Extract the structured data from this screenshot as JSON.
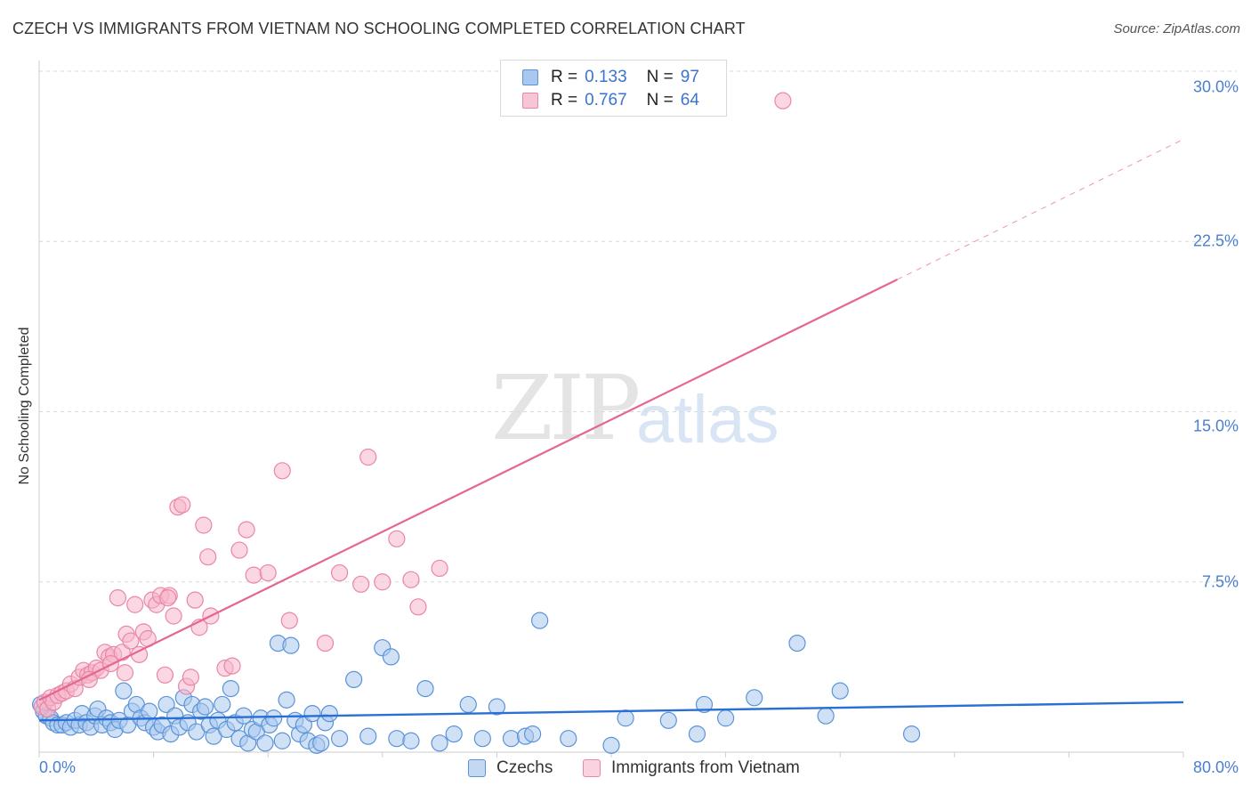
{
  "title": "CZECH VS IMMIGRANTS FROM VIETNAM NO SCHOOLING COMPLETED CORRELATION CHART",
  "source": "Source: ZipAtlas.com",
  "watermark": {
    "part_a": "ZIP",
    "part_b": "atlas"
  },
  "legend": {
    "rows": [
      {
        "r_label": "R =",
        "r_value": "0.133",
        "n_label": "N =",
        "n_value": "97"
      },
      {
        "r_label": "R =",
        "r_value": "0.767",
        "n_label": "N =",
        "n_value": "64"
      }
    ]
  },
  "bottom_legend": [
    "Czechs",
    "Immigrants from Vietnam"
  ],
  "colors": {
    "blue_fill": "#a9c8ef",
    "blue_stroke": "#5b93d8",
    "blue_line": "#2a6fd6",
    "pink_fill": "#f6b7cb",
    "pink_stroke": "#ea86a6",
    "pink_line": "#e56690",
    "grid": "#d9d9d9",
    "tick_text": "#4a7fd0"
  },
  "chart_data": {
    "type": "scatter",
    "title": "CZECH VS IMMIGRANTS FROM VIETNAM NO SCHOOLING COMPLETED CORRELATION CHART",
    "xlabel": "",
    "ylabel": "No Schooling Completed",
    "xlim": [
      0,
      80
    ],
    "ylim": [
      0,
      30
    ],
    "x_tick_labels": [
      "0.0%",
      "80.0%"
    ],
    "y_ticks": [
      7.5,
      15.0,
      22.5,
      30.0
    ],
    "y_tick_labels": [
      "7.5%",
      "15.0%",
      "22.5%",
      "30.0%"
    ],
    "grid": true,
    "legend_position": "top-center",
    "series": [
      {
        "name": "Czechs",
        "r": 0.133,
        "n": 97,
        "trend": {
          "x0": 0,
          "y0": 1.4,
          "x1": 80,
          "y1": 2.2,
          "dashed_from": null
        },
        "points": [
          [
            0.1,
            2.1
          ],
          [
            0.3,
            1.8
          ],
          [
            0.5,
            1.6
          ],
          [
            0.8,
            1.5
          ],
          [
            1.0,
            1.3
          ],
          [
            1.3,
            1.2
          ],
          [
            1.6,
            1.2
          ],
          [
            1.9,
            1.3
          ],
          [
            2.2,
            1.1
          ],
          [
            2.5,
            1.4
          ],
          [
            2.8,
            1.2
          ],
          [
            3.0,
            1.7
          ],
          [
            3.3,
            1.3
          ],
          [
            3.6,
            1.1
          ],
          [
            3.9,
            1.6
          ],
          [
            4.1,
            1.9
          ],
          [
            4.4,
            1.2
          ],
          [
            4.7,
            1.5
          ],
          [
            5.0,
            1.3
          ],
          [
            5.3,
            1.0
          ],
          [
            5.6,
            1.4
          ],
          [
            5.9,
            2.7
          ],
          [
            6.2,
            1.2
          ],
          [
            6.5,
            1.8
          ],
          [
            6.8,
            2.1
          ],
          [
            7.1,
            1.5
          ],
          [
            7.4,
            1.3
          ],
          [
            7.7,
            1.8
          ],
          [
            8.0,
            1.1
          ],
          [
            8.3,
            0.9
          ],
          [
            8.6,
            1.2
          ],
          [
            8.9,
            2.1
          ],
          [
            9.2,
            0.8
          ],
          [
            9.5,
            1.6
          ],
          [
            9.8,
            1.1
          ],
          [
            10.1,
            2.4
          ],
          [
            10.4,
            1.3
          ],
          [
            10.7,
            2.1
          ],
          [
            11.0,
            0.9
          ],
          [
            11.3,
            1.8
          ],
          [
            11.6,
            2.0
          ],
          [
            11.9,
            1.2
          ],
          [
            12.2,
            0.7
          ],
          [
            12.5,
            1.4
          ],
          [
            12.8,
            2.1
          ],
          [
            13.1,
            1.0
          ],
          [
            13.4,
            2.8
          ],
          [
            13.7,
            1.3
          ],
          [
            14.0,
            0.6
          ],
          [
            14.3,
            1.6
          ],
          [
            14.6,
            0.4
          ],
          [
            14.9,
            1.0
          ],
          [
            15.2,
            0.9
          ],
          [
            15.5,
            1.5
          ],
          [
            15.8,
            0.4
          ],
          [
            16.1,
            1.2
          ],
          [
            16.4,
            1.5
          ],
          [
            16.7,
            4.8
          ],
          [
            17.0,
            0.5
          ],
          [
            17.3,
            2.3
          ],
          [
            17.6,
            4.7
          ],
          [
            17.9,
            1.4
          ],
          [
            18.2,
            0.8
          ],
          [
            18.5,
            1.2
          ],
          [
            18.8,
            0.5
          ],
          [
            19.1,
            1.7
          ],
          [
            19.4,
            0.3
          ],
          [
            19.7,
            0.4
          ],
          [
            20.0,
            1.3
          ],
          [
            20.3,
            1.7
          ],
          [
            21.0,
            0.6
          ],
          [
            22.0,
            3.2
          ],
          [
            23.0,
            0.7
          ],
          [
            24.0,
            4.6
          ],
          [
            24.6,
            4.2
          ],
          [
            25.0,
            0.6
          ],
          [
            26.0,
            0.5
          ],
          [
            27.0,
            2.8
          ],
          [
            28.0,
            0.4
          ],
          [
            29.0,
            0.8
          ],
          [
            30.0,
            2.1
          ],
          [
            31.0,
            0.6
          ],
          [
            32.0,
            2.0
          ],
          [
            33.0,
            0.6
          ],
          [
            34.0,
            0.7
          ],
          [
            34.5,
            0.8
          ],
          [
            35.0,
            5.8
          ],
          [
            37.0,
            0.6
          ],
          [
            40.0,
            0.3
          ],
          [
            41.0,
            1.5
          ],
          [
            44.0,
            1.4
          ],
          [
            46.0,
            0.8
          ],
          [
            46.5,
            2.1
          ],
          [
            48.0,
            1.5
          ],
          [
            50.0,
            2.4
          ],
          [
            53.0,
            4.8
          ],
          [
            55.0,
            1.6
          ],
          [
            56.0,
            2.7
          ],
          [
            61.0,
            0.8
          ]
        ]
      },
      {
        "name": "Immigrants from Vietnam",
        "r": 0.767,
        "n": 64,
        "trend": {
          "x0": 0,
          "y0": 2.3,
          "x1": 80,
          "y1": 27.0,
          "dashed_from": 60
        },
        "points": [
          [
            0.2,
            2.0
          ],
          [
            0.4,
            2.2
          ],
          [
            0.6,
            1.9
          ],
          [
            0.8,
            2.4
          ],
          [
            1.0,
            2.2
          ],
          [
            1.3,
            2.5
          ],
          [
            1.6,
            2.6
          ],
          [
            1.9,
            2.7
          ],
          [
            2.2,
            3.0
          ],
          [
            2.5,
            2.8
          ],
          [
            2.8,
            3.3
          ],
          [
            3.1,
            3.6
          ],
          [
            3.4,
            3.4
          ],
          [
            3.7,
            3.5
          ],
          [
            4.0,
            3.7
          ],
          [
            4.3,
            3.6
          ],
          [
            4.6,
            4.4
          ],
          [
            4.9,
            4.2
          ],
          [
            5.2,
            4.3
          ],
          [
            5.5,
            6.8
          ],
          [
            5.8,
            4.4
          ],
          [
            6.1,
            5.2
          ],
          [
            6.4,
            4.9
          ],
          [
            6.7,
            6.5
          ],
          [
            7.0,
            4.3
          ],
          [
            7.3,
            5.3
          ],
          [
            7.6,
            5.0
          ],
          [
            7.9,
            6.7
          ],
          [
            8.2,
            6.5
          ],
          [
            8.5,
            6.9
          ],
          [
            8.8,
            3.4
          ],
          [
            9.1,
            6.9
          ],
          [
            9.4,
            6.0
          ],
          [
            9.7,
            10.8
          ],
          [
            10.0,
            10.9
          ],
          [
            10.3,
            2.9
          ],
          [
            10.6,
            3.3
          ],
          [
            10.9,
            6.7
          ],
          [
            11.2,
            5.5
          ],
          [
            11.5,
            10.0
          ],
          [
            11.8,
            8.6
          ],
          [
            12.0,
            6.0
          ],
          [
            13.0,
            3.7
          ],
          [
            13.5,
            3.8
          ],
          [
            14.0,
            8.9
          ],
          [
            14.5,
            9.8
          ],
          [
            15.0,
            7.8
          ],
          [
            16.0,
            7.9
          ],
          [
            17.0,
            12.4
          ],
          [
            17.5,
            5.8
          ],
          [
            20.0,
            4.8
          ],
          [
            21.0,
            7.9
          ],
          [
            22.5,
            7.4
          ],
          [
            23.0,
            13.0
          ],
          [
            24.0,
            7.5
          ],
          [
            25.0,
            9.4
          ],
          [
            26.0,
            7.6
          ],
          [
            26.5,
            6.4
          ],
          [
            28.0,
            8.1
          ],
          [
            52.0,
            28.7
          ],
          [
            5.0,
            3.9
          ],
          [
            6.0,
            3.5
          ],
          [
            3.5,
            3.2
          ],
          [
            9.0,
            6.8
          ]
        ]
      }
    ]
  }
}
